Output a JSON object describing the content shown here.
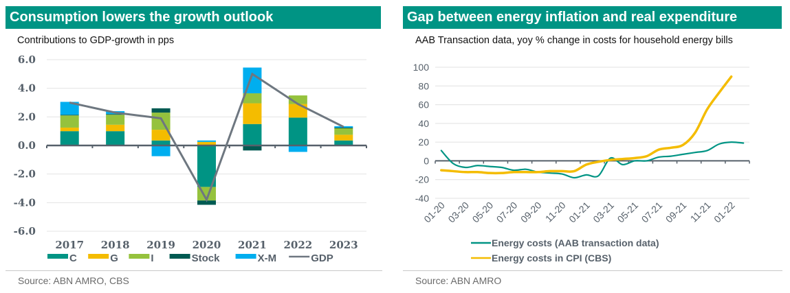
{
  "chart_data": [
    {
      "type": "bar",
      "stacked": true,
      "title": "Consumption lowers the growth outlook",
      "subtitle": "Contributions to GDP-growth in pps",
      "source": "Source: ABN AMRO, CBS",
      "xlabel": "",
      "ylabel": "",
      "ylim": [
        -6.0,
        6.0
      ],
      "yticks": [
        "6.0",
        "4.0",
        "2.0",
        "0.0",
        "-2.0",
        "-4.0",
        "-6.0"
      ],
      "ytick_values": [
        6,
        4,
        2,
        0,
        -2,
        -4,
        -6
      ],
      "grid": true,
      "legend_position": "bottom",
      "categories": [
        "2017",
        "2018",
        "2019",
        "2020",
        "2021",
        "2022",
        "2023"
      ],
      "series": [
        {
          "name": "C",
          "color": "#009484",
          "values": [
            1.0,
            1.0,
            0.35,
            -2.9,
            1.5,
            1.95,
            0.35
          ]
        },
        {
          "name": "G",
          "color": "#f4bc00",
          "values": [
            0.25,
            0.45,
            0.75,
            0.25,
            1.45,
            0.95,
            0.4
          ]
        },
        {
          "name": "I",
          "color": "#95c23d",
          "values": [
            0.85,
            0.7,
            1.2,
            -0.95,
            0.7,
            0.6,
            0.45
          ]
        },
        {
          "name": "Stock",
          "color": "#005a52",
          "values": [
            0.05,
            0.05,
            0.3,
            -0.3,
            -0.35,
            0.0,
            0.05
          ]
        },
        {
          "name": "X-M",
          "color": "#00aeef",
          "values": [
            0.9,
            0.2,
            -0.75,
            0.1,
            1.8,
            -0.45,
            0.1
          ]
        }
      ],
      "line": {
        "name": "GDP",
        "color": "#6e7780",
        "values": [
          3.0,
          2.3,
          1.9,
          -3.8,
          5.0,
          2.9,
          1.3
        ]
      }
    },
    {
      "type": "line",
      "title": "Gap between energy inflation and real expenditure",
      "subtitle": "AAB Transaction data, yoy % change in costs for household energy bills",
      "source": "Source: ABN AMRO",
      "xlabel": "",
      "ylabel": "",
      "ylim": [
        -40,
        100
      ],
      "yticks": [
        "100",
        "80",
        "60",
        "40",
        "20",
        "0",
        "-20",
        "-40"
      ],
      "ytick_values": [
        100,
        80,
        60,
        40,
        20,
        0,
        -20,
        -40
      ],
      "grid": true,
      "legend_position": "bottom",
      "x_tick_labels": [
        "01-20",
        "03-20",
        "05-20",
        "07-20",
        "09-20",
        "11-20",
        "01-21",
        "03-21",
        "05-21",
        "07-21",
        "09-21",
        "11-21",
        "01-22"
      ],
      "x": [
        "01-20",
        "02-20",
        "03-20",
        "04-20",
        "05-20",
        "06-20",
        "07-20",
        "08-20",
        "09-20",
        "10-20",
        "11-20",
        "12-20",
        "01-21",
        "02-21",
        "03-21",
        "04-21",
        "05-21",
        "06-21",
        "07-21",
        "08-21",
        "09-21",
        "10-21",
        "11-21",
        "12-21",
        "01-22",
        "02-22"
      ],
      "series": [
        {
          "name": "Energy costs (AAB transaction data)",
          "color": "#009484",
          "values": [
            11,
            -3,
            -7,
            -5,
            -6,
            -7,
            -10,
            -9,
            -12,
            -13,
            -14,
            -18,
            -15,
            -16,
            3,
            -4,
            0,
            0,
            4,
            5,
            7,
            9,
            11,
            18,
            20,
            19
          ]
        },
        {
          "name": "Energy costs in CPI (CBS)",
          "color": "#f4bc00",
          "values": [
            -10,
            -11,
            -12,
            -12,
            -13,
            -13,
            -12,
            -12,
            -12,
            -11,
            -11,
            -11,
            -4,
            -1,
            1,
            2,
            3,
            5,
            12,
            14,
            17,
            30,
            55,
            73,
            90,
            null
          ]
        }
      ]
    }
  ]
}
